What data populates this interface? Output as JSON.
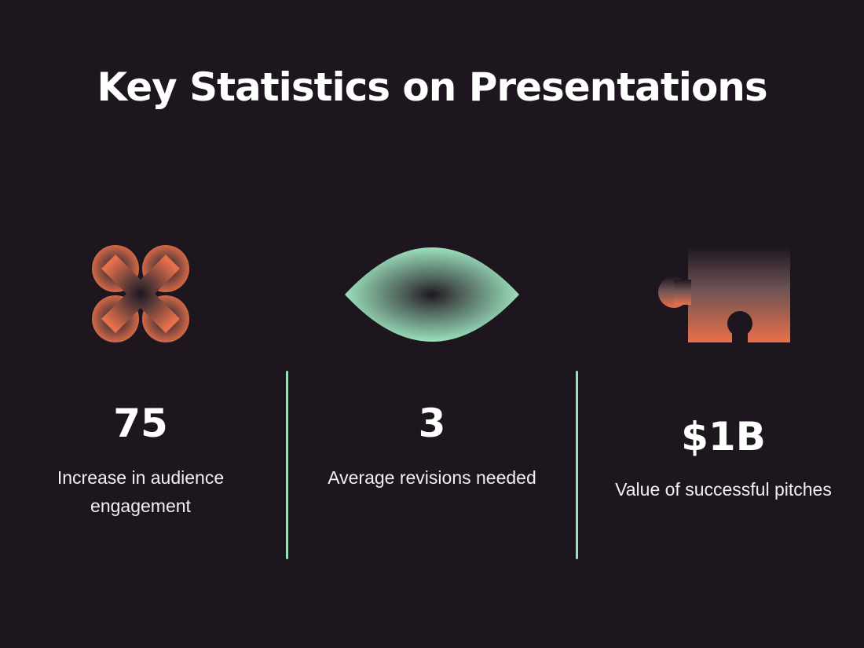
{
  "slide": {
    "title": "Key Statistics on Presentations"
  },
  "stats": [
    {
      "icon": "cross-icon",
      "value": "75",
      "label": "Increase in audience engagement"
    },
    {
      "icon": "eye-icon",
      "value": "3",
      "label": "Average revisions needed"
    },
    {
      "icon": "puzzle-piece-icon",
      "value": "$1B",
      "label": "Value of successful pitches"
    }
  ],
  "colors": {
    "background": "#1d161f",
    "accent_green": "#9be0bd",
    "accent_orange": "#e8704a"
  }
}
